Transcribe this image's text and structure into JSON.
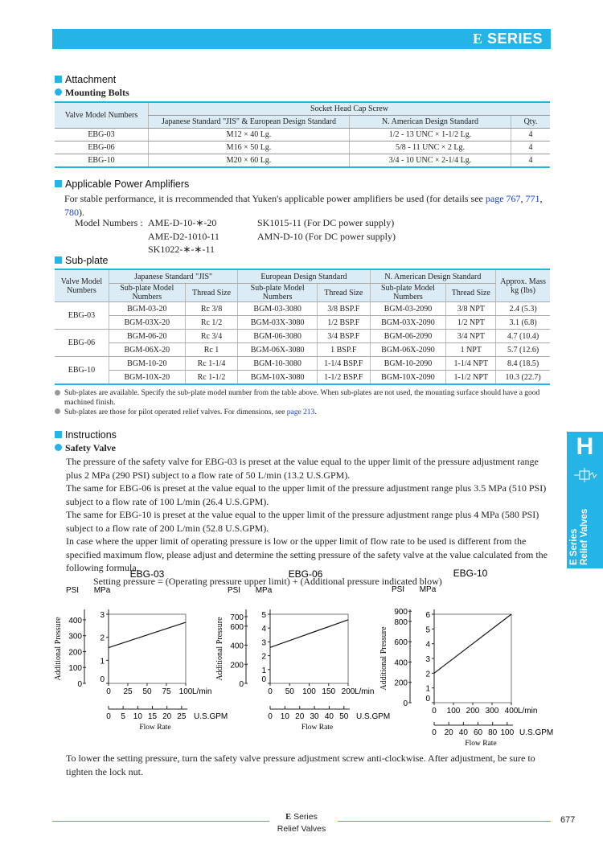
{
  "header": {
    "series_letter": "E",
    "series_word": "SERIES"
  },
  "attachment": {
    "section_title": "Attachment",
    "sub_title": "Mounting Bolts",
    "col_valve": "Valve Model Numbers",
    "col_socket": "Socket Head Cap Screw",
    "col_jis": "Japanese Standard \"JIS\" & European Design Standard",
    "col_na": "N. American Design Standard",
    "col_qty": "Qty.",
    "rows": [
      {
        "model": "EBG-03",
        "jis": "M12 × 40 Lg.",
        "na": "1/2 - 13 UNC × 1-1/2 Lg.",
        "qty": "4"
      },
      {
        "model": "EBG-06",
        "jis": "M16 × 50 Lg.",
        "na": "5/8 - 11 UNC × 2 Lg.",
        "qty": "4"
      },
      {
        "model": "EBG-10",
        "jis": "M20 × 60 Lg.",
        "na": "3/4 - 10 UNC × 2-1/4 Lg.",
        "qty": "4"
      }
    ]
  },
  "amplifiers": {
    "section_title": "Applicable Power Amplifiers",
    "text1": "For stable performance, it is rrecommended that Yuken's applicable power amplifiers be used (for details see",
    "link1": "page 767",
    "link2": "771",
    "link3": "780",
    "sep1": ",",
    "sep2": ",",
    "end": ").",
    "label": "Model Numbers :",
    "models_left": [
      "AME-D-10-∗-20",
      "AME-D2-1010-11",
      "SK1022-∗-∗-11"
    ],
    "models_right": [
      "SK1015-11 (For DC power supply)",
      "AMN-D-10 (For DC power supply)"
    ]
  },
  "subplate": {
    "section_title": "Sub-plate",
    "col_valve": "Valve Model Numbers",
    "col_jis": "Japanese Standard \"JIS\"",
    "col_eu": "European Design Standard",
    "col_na": "N. American Design Standard",
    "col_mass": "Approx. Mass kg (lbs)",
    "sub_model": "Sub-plate Model Numbers",
    "thread": "Thread Size",
    "groups": [
      {
        "valve": "EBG-03",
        "rows": [
          {
            "jis": "BGM-03-20",
            "jis_t": "Rc 3/8",
            "eu": "BGM-03-3080",
            "eu_t": "3/8 BSP.F",
            "na": "BGM-03-2090",
            "na_t": "3/8 NPT",
            "mass": "2.4 (5.3)"
          },
          {
            "jis": "BGM-03X-20",
            "jis_t": "Rc 1/2",
            "eu": "BGM-03X-3080",
            "eu_t": "1/2 BSP.F",
            "na": "BGM-03X-2090",
            "na_t": "1/2 NPT",
            "mass": "3.1 (6.8)"
          }
        ]
      },
      {
        "valve": "EBG-06",
        "rows": [
          {
            "jis": "BGM-06-20",
            "jis_t": "Rc 3/4",
            "eu": "BGM-06-3080",
            "eu_t": "3/4 BSP.F",
            "na": "BGM-06-2090",
            "na_t": "3/4 NPT",
            "mass": "4.7 (10.4)"
          },
          {
            "jis": "BGM-06X-20",
            "jis_t": "Rc 1",
            "eu": "BGM-06X-3080",
            "eu_t": "1 BSP.F",
            "na": "BGM-06X-2090",
            "na_t": "1 NPT",
            "mass": "5.7 (12.6)"
          }
        ]
      },
      {
        "valve": "EBG-10",
        "rows": [
          {
            "jis": "BGM-10-20",
            "jis_t": "Rc 1-1/4",
            "eu": "BGM-10-3080",
            "eu_t": "1-1/4 BSP.F",
            "na": "BGM-10-2090",
            "na_t": "1-1/4 NPT",
            "mass": "8.4 (18.5)"
          },
          {
            "jis": "BGM-10X-20",
            "jis_t": "Rc 1-1/2",
            "eu": "BGM-10X-3080",
            "eu_t": "1-1/2 BSP.F",
            "na": "BGM-10X-2090",
            "na_t": "1-1/2 NPT",
            "mass": "10.3 (22.7)"
          }
        ]
      }
    ],
    "note1": "Sub-plates are available.  Specify the sub-plate model number from the table above.  When sub-plates are not used, the mounting surface should have a good machined finish.",
    "note2_pre": "Sub-plates are those for pilot operated relief valves.  For dimensions, see",
    "note2_link": "page 213",
    "note2_end": "."
  },
  "instructions": {
    "section_title": "Instructions",
    "sub_title": "Safety Valve",
    "p1": "The pressure of the safety valve  for EBG-03 is  preset at the  value equal to the upper limit of the pressure adjustment range plus 2 MPa (290 PSI) subject to a flow rate of 50  L/min (13.2 U.S.GPM).",
    "p2": "The same for EBG-06 is preset at the value equal to the upper limit of the pressure adjustment range plus 3.5 MPa (510 PSI) subject to a flow rate of 100  L/min (26.4 U.S.GPM).",
    "p3": "The same for EBG-10 is preset at the value equal to the upper limit of the pressure adjustment range plus 4 MPa (580 PSI) subject to a flow rate of 200  L/min (52.8 U.S.GPM).",
    "p4": "In case where the upper limit of operating pressure is low or the upper limit of flow rate to be used is different from the specified  maximum flow, please adjust and determine the setting pressure of the safety valve at the value calculated from the following formula.",
    "formula": "Setting pressure = (Operating pressure upper limit) + (Additional pressure indicated blow)",
    "p5": "To lower the setting pressure, turn the safety valve pressure adjustment screw anti-clockwise.  After adjustment, be sure to tighten the lock nut."
  },
  "charts": {
    "psi_label": "PSI",
    "mpa_label": "MPa",
    "ylabel": "Additional Pressure",
    "xlabel": "Flow Rate",
    "lmin": "L/min",
    "gpm": "U.S.GPM"
  },
  "chart_data": [
    {
      "type": "line",
      "title": "EBG-03",
      "xlabel": "Flow Rate",
      "ylabel": "Additional Pressure",
      "x_lmin_ticks": [
        "0",
        "25",
        "50",
        "75",
        "100"
      ],
      "x_gpm_ticks": [
        "0",
        "5",
        "10",
        "15",
        "20",
        "25"
      ],
      "y_mpa_ticks": [
        "0",
        "1",
        "2",
        "3"
      ],
      "y_psi_ticks": [
        "0",
        "100",
        "200",
        "300",
        "400"
      ],
      "xlim": [
        0,
        100
      ],
      "ylim": [
        0,
        3
      ],
      "series": [
        {
          "x": [
            0,
            100
          ],
          "y": [
            1.55,
            2.65
          ]
        }
      ]
    },
    {
      "type": "line",
      "title": "EBG-06",
      "xlabel": "Flow Rate",
      "ylabel": "Additional Pressure",
      "x_lmin_ticks": [
        "0",
        "50",
        "100",
        "150",
        "200"
      ],
      "x_gpm_ticks": [
        "0",
        "10",
        "20",
        "30",
        "40",
        "50"
      ],
      "y_mpa_ticks": [
        "0",
        "1",
        "2",
        "3",
        "4",
        "5"
      ],
      "y_psi_ticks": [
        "0",
        "200",
        "400",
        "600",
        "700"
      ],
      "xlim": [
        0,
        200
      ],
      "ylim": [
        0,
        5
      ],
      "series": [
        {
          "x": [
            0,
            200
          ],
          "y": [
            2.6,
            4.6
          ]
        }
      ]
    },
    {
      "type": "line",
      "title": "EBG-10",
      "xlabel": "Flow Rate",
      "ylabel": "Additional Pressure",
      "x_lmin_ticks": [
        "0",
        "100",
        "200",
        "300",
        "400"
      ],
      "x_gpm_ticks": [
        "0",
        "20",
        "40",
        "60",
        "80",
        "100"
      ],
      "y_mpa_ticks": [
        "0",
        "1",
        "2",
        "3",
        "4",
        "5",
        "6"
      ],
      "y_psi_ticks": [
        "0",
        "200",
        "400",
        "600",
        "800",
        "900"
      ],
      "xlim": [
        0,
        400
      ],
      "ylim": [
        0,
        6
      ],
      "series": [
        {
          "x": [
            0,
            400
          ],
          "y": [
            2.0,
            6.0
          ]
        }
      ]
    }
  ],
  "side_tab": {
    "letter": "H",
    "line1": "E Series",
    "line2": "Relief Valves"
  },
  "footer": {
    "letter": "E",
    "series": "Series",
    "category": "Relief Valves",
    "page": "677"
  }
}
